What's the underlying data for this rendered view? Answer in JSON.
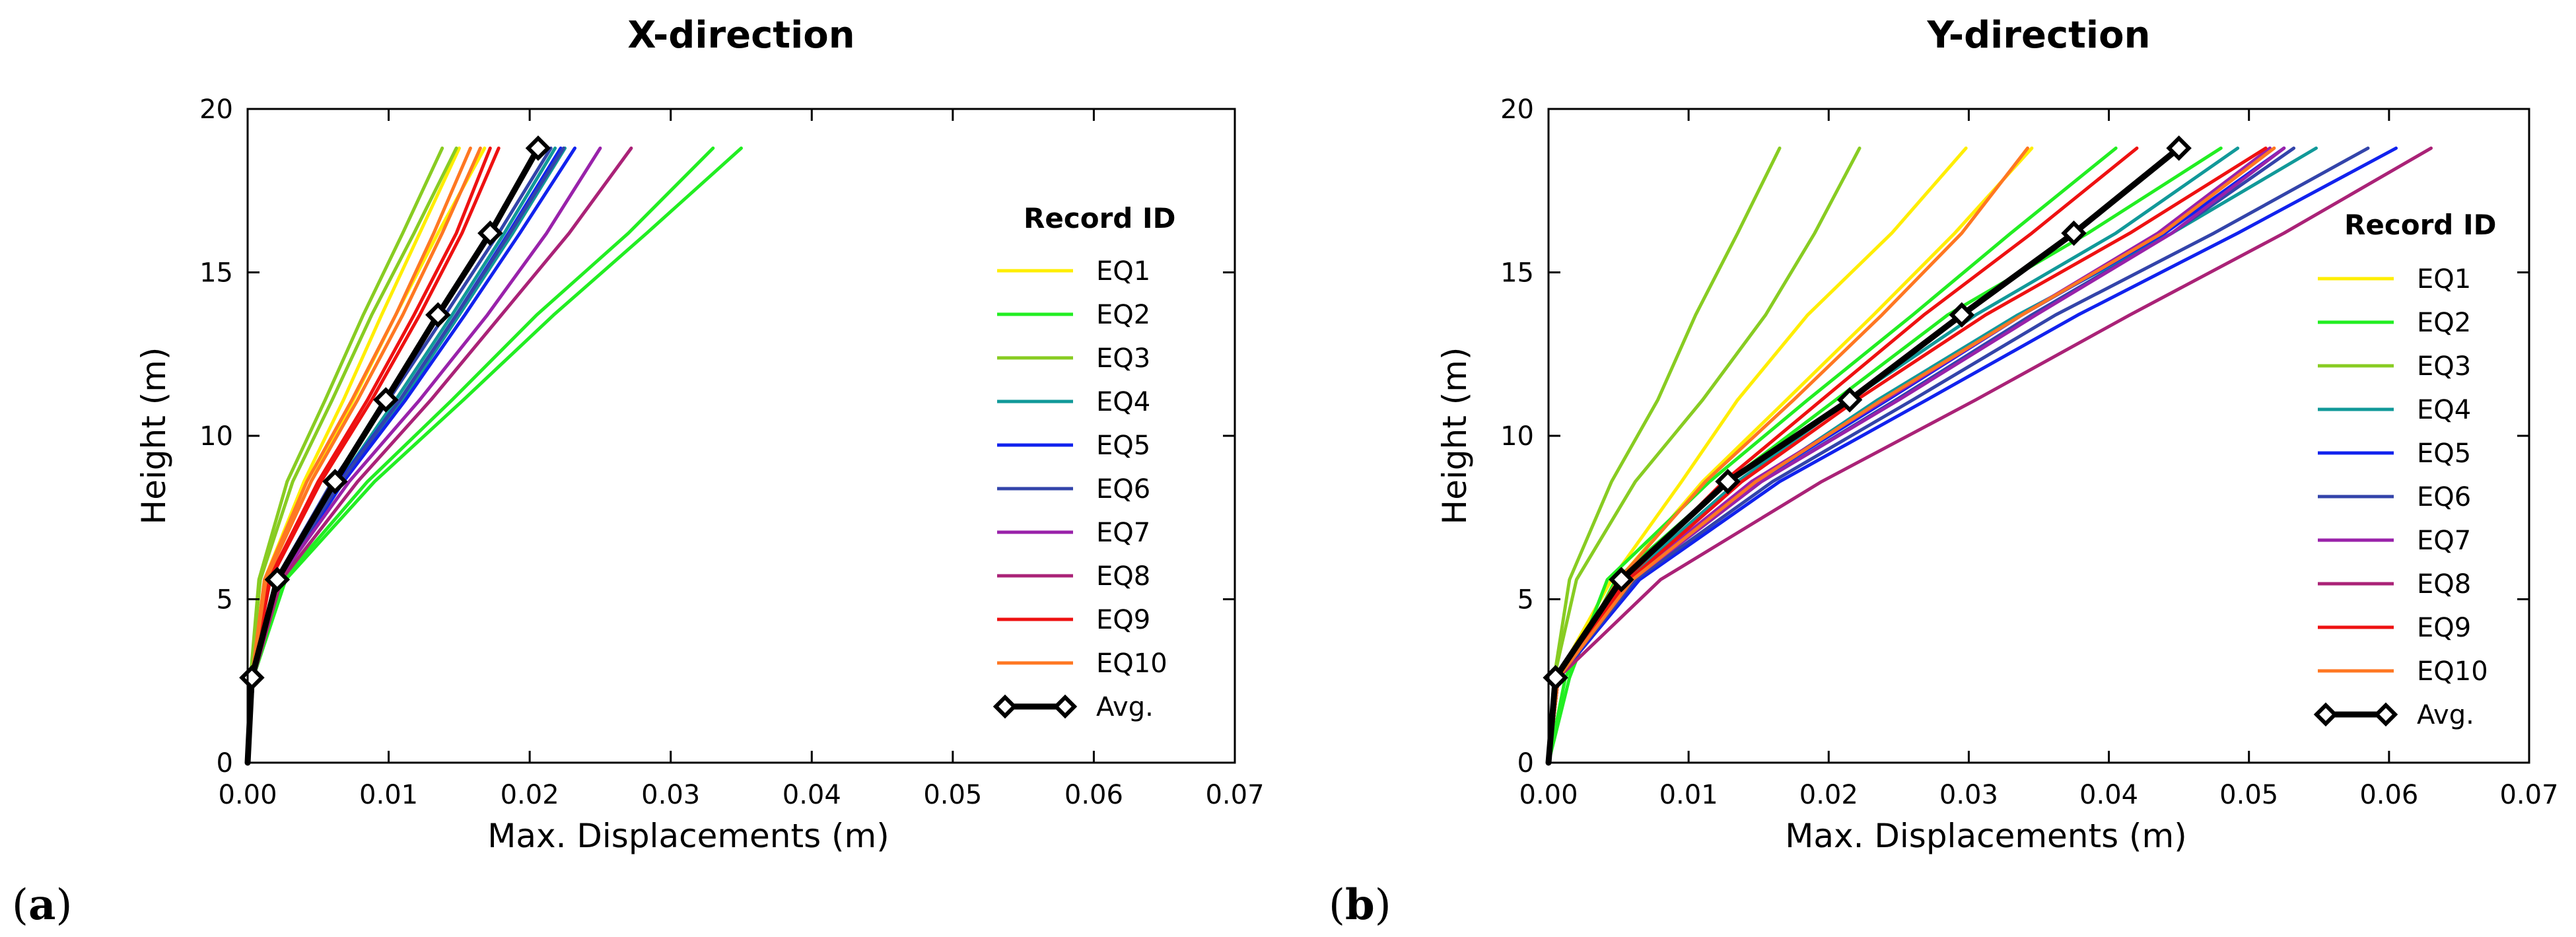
{
  "chart_data": [
    {
      "type": "line",
      "panel_label": "(a)",
      "panel_letter": "a",
      "title": "X-direction",
      "xlabel": "Max. Displacements (m)",
      "ylabel": "Height (m)",
      "xlim": [
        0,
        0.07
      ],
      "ylim": [
        0,
        20
      ],
      "xticks": [
        0.0,
        0.01,
        0.02,
        0.03,
        0.04,
        0.05,
        0.06,
        0.07
      ],
      "xtick_labels": [
        "0.00",
        "0.01",
        "0.02",
        "0.03",
        "0.04",
        "0.05",
        "0.06",
        "0.07"
      ],
      "yticks": [
        0,
        5,
        10,
        15,
        20
      ],
      "ytick_labels": [
        "0",
        "5",
        "10",
        "15",
        "20"
      ],
      "legend_title": "Record ID",
      "legend_position": "right",
      "heights": [
        0,
        2.6,
        5.6,
        8.6,
        11.1,
        13.7,
        16.2,
        18.8
      ],
      "series": [
        {
          "name": "EQ1",
          "color": "#ffee00",
          "lines": [
            [
              0,
              0.0003,
              0.0012,
              0.004,
              0.0068,
              0.0095,
              0.0122,
              0.015
            ],
            [
              0,
              0.0003,
              0.0013,
              0.0045,
              0.0075,
              0.0105,
              0.0135,
              0.0168
            ]
          ]
        },
        {
          "name": "EQ2",
          "color": "#22ee22",
          "lines": [
            [
              0,
              0.0004,
              0.0025,
              0.0085,
              0.0145,
              0.0205,
              0.027,
              0.033
            ],
            [
              0,
              0.0004,
              0.0027,
              0.009,
              0.0153,
              0.0217,
              0.0283,
              0.035
            ]
          ]
        },
        {
          "name": "EQ3",
          "color": "#88cc22",
          "lines": [
            [
              0,
              0.0002,
              0.0008,
              0.0028,
              0.0055,
              0.0082,
              0.011,
              0.0138
            ],
            [
              0,
              0.0002,
              0.0009,
              0.0032,
              0.006,
              0.0088,
              0.0118,
              0.0148
            ]
          ]
        },
        {
          "name": "EQ4",
          "color": "#119999",
          "lines": [
            [
              0,
              0.0004,
              0.0022,
              0.0065,
              0.0105,
              0.0145,
              0.0182,
              0.0218
            ],
            [
              0,
              0.0004,
              0.0023,
              0.0068,
              0.011,
              0.015,
              0.0188,
              0.0225
            ]
          ]
        },
        {
          "name": "EQ5",
          "color": "#1122ee",
          "lines": [
            [
              0,
              0.0004,
              0.0021,
              0.0065,
              0.0108,
              0.0148,
              0.0185,
              0.0222
            ],
            [
              0,
              0.0004,
              0.0022,
              0.0068,
              0.0112,
              0.0154,
              0.0193,
              0.0232
            ]
          ]
        },
        {
          "name": "EQ6",
          "color": "#3344aa",
          "lines": [
            [
              0,
              0.0004,
              0.002,
              0.006,
              0.01,
              0.014,
              0.0178,
              0.0215
            ],
            [
              0,
              0.0004,
              0.0022,
              0.0066,
              0.0108,
              0.0148,
              0.0186,
              0.0224
            ]
          ]
        },
        {
          "name": "EQ7",
          "color": "#9922aa",
          "lines": [
            [
              0,
              0.0004,
              0.0022,
              0.0072,
              0.0122,
              0.017,
              0.0212,
              0.025
            ]
          ]
        },
        {
          "name": "EQ8",
          "color": "#aa2277",
          "lines": [
            [
              0,
              0.0004,
              0.0024,
              0.0078,
              0.013,
              0.018,
              0.0228,
              0.0272
            ]
          ]
        },
        {
          "name": "EQ9",
          "color": "#ee1111",
          "lines": [
            [
              0,
              0.0003,
              0.0016,
              0.0052,
              0.0088,
              0.0122,
              0.0152,
              0.0178
            ],
            [
              0,
              0.0003,
              0.0015,
              0.005,
              0.0085,
              0.0118,
              0.0148,
              0.0172
            ]
          ]
        },
        {
          "name": "EQ10",
          "color": "#ff7722",
          "lines": [
            [
              0,
              0.0003,
              0.0013,
              0.0045,
              0.0078,
              0.011,
              0.0138,
              0.0165
            ],
            [
              0,
              0.0003,
              0.0012,
              0.0042,
              0.0074,
              0.0105,
              0.0132,
              0.0158
            ]
          ]
        },
        {
          "name": "Avg.",
          "color": "#000000",
          "marker": "diamond",
          "lines": [
            [
              0,
              0.0003,
              0.0021,
              0.0062,
              0.0098,
              0.0135,
              0.0172,
              0.0206
            ]
          ]
        }
      ]
    },
    {
      "type": "line",
      "panel_label": "(b)",
      "panel_letter": "b",
      "title": "Y-direction",
      "xlabel": "Max. Displacements (m)",
      "ylabel": "Height (m)",
      "xlim": [
        0,
        0.07
      ],
      "ylim": [
        0,
        20
      ],
      "xticks": [
        0.0,
        0.01,
        0.02,
        0.03,
        0.04,
        0.05,
        0.06,
        0.07
      ],
      "xtick_labels": [
        "0.00",
        "0.01",
        "0.02",
        "0.03",
        "0.04",
        "0.05",
        "0.06",
        "0.07"
      ],
      "yticks": [
        0,
        5,
        10,
        15,
        20
      ],
      "ytick_labels": [
        "0",
        "5",
        "10",
        "15",
        "20"
      ],
      "legend_title": "Record ID",
      "legend_position": "right",
      "heights": [
        0,
        2.6,
        5.6,
        8.6,
        11.1,
        13.7,
        16.2,
        18.8
      ],
      "series": [
        {
          "name": "EQ1",
          "color": "#ffee00",
          "lines": [
            [
              0,
              0.0006,
              0.0045,
              0.0095,
              0.0135,
              0.0185,
              0.0245,
              0.0298
            ],
            [
              0,
              0.0006,
              0.005,
              0.011,
              0.017,
              0.0232,
              0.029,
              0.0345
            ]
          ]
        },
        {
          "name": "EQ2",
          "color": "#22ee22",
          "lines": [
            [
              0,
              0.0015,
              0.0042,
              0.0115,
              0.0185,
              0.026,
              0.033,
              0.0405
            ],
            [
              0,
              0.0012,
              0.0048,
              0.0128,
              0.0205,
              0.0285,
              0.0385,
              0.048
            ]
          ]
        },
        {
          "name": "EQ3",
          "color": "#88cc22",
          "lines": [
            [
              0,
              0.0004,
              0.0015,
              0.0045,
              0.0078,
              0.0105,
              0.0135,
              0.0165
            ],
            [
              0,
              0.0004,
              0.002,
              0.0062,
              0.011,
              0.0155,
              0.019,
              0.0222
            ]
          ]
        },
        {
          "name": "EQ4",
          "color": "#119999",
          "lines": [
            [
              0,
              0.0007,
              0.0055,
              0.0135,
              0.0215,
              0.0305,
              0.0405,
              0.0492
            ],
            [
              0,
              0.0007,
              0.006,
              0.0148,
              0.0235,
              0.0335,
              0.0445,
              0.0548
            ]
          ]
        },
        {
          "name": "EQ5",
          "color": "#1122ee",
          "lines": [
            [
              0,
              0.0007,
              0.0065,
              0.0165,
              0.027,
              0.0378,
              0.0492,
              0.0605
            ],
            [
              0,
              0.0007,
              0.006,
              0.0148,
              0.0242,
              0.0338,
              0.044,
              0.0525
            ]
          ]
        },
        {
          "name": "EQ6",
          "color": "#3344aa",
          "lines": [
            [
              0,
              0.0007,
              0.006,
              0.0152,
              0.0248,
              0.0345,
              0.0445,
              0.0532
            ],
            [
              0,
              0.0007,
              0.0062,
              0.016,
              0.026,
              0.0362,
              0.0475,
              0.0585
            ]
          ]
        },
        {
          "name": "EQ7",
          "color": "#9922aa",
          "lines": [
            [
              0,
              0.0007,
              0.0058,
              0.0145,
              0.024,
              0.0338,
              0.0435,
              0.0515
            ],
            [
              0,
              0.0007,
              0.006,
              0.0152,
              0.025,
              0.0348,
              0.0445,
              0.0525
            ]
          ]
        },
        {
          "name": "EQ8",
          "color": "#aa2277",
          "lines": [
            [
              0,
              0.0007,
              0.008,
              0.0195,
              0.0305,
              0.0415,
              0.0525,
              0.063
            ]
          ]
        },
        {
          "name": "EQ9",
          "color": "#ee1111",
          "lines": [
            [
              0,
              0.0007,
              0.0055,
              0.0125,
              0.0195,
              0.0268,
              0.0345,
              0.042
            ],
            [
              0,
              0.0007,
              0.0058,
              0.0138,
              0.022,
              0.0312,
              0.0415,
              0.0512
            ]
          ]
        },
        {
          "name": "EQ10",
          "color": "#ff7722",
          "lines": [
            [
              0,
              0.0006,
              0.005,
              0.0112,
              0.0175,
              0.0238,
              0.0295,
              0.0342
            ],
            [
              0,
              0.0007,
              0.006,
              0.0148,
              0.0238,
              0.0338,
              0.0438,
              0.0518
            ]
          ]
        },
        {
          "name": "Avg.",
          "color": "#000000",
          "marker": "diamond",
          "lines": [
            [
              0,
              0.0005,
              0.0052,
              0.0128,
              0.0215,
              0.0295,
              0.0375,
              0.045
            ]
          ]
        }
      ]
    }
  ]
}
